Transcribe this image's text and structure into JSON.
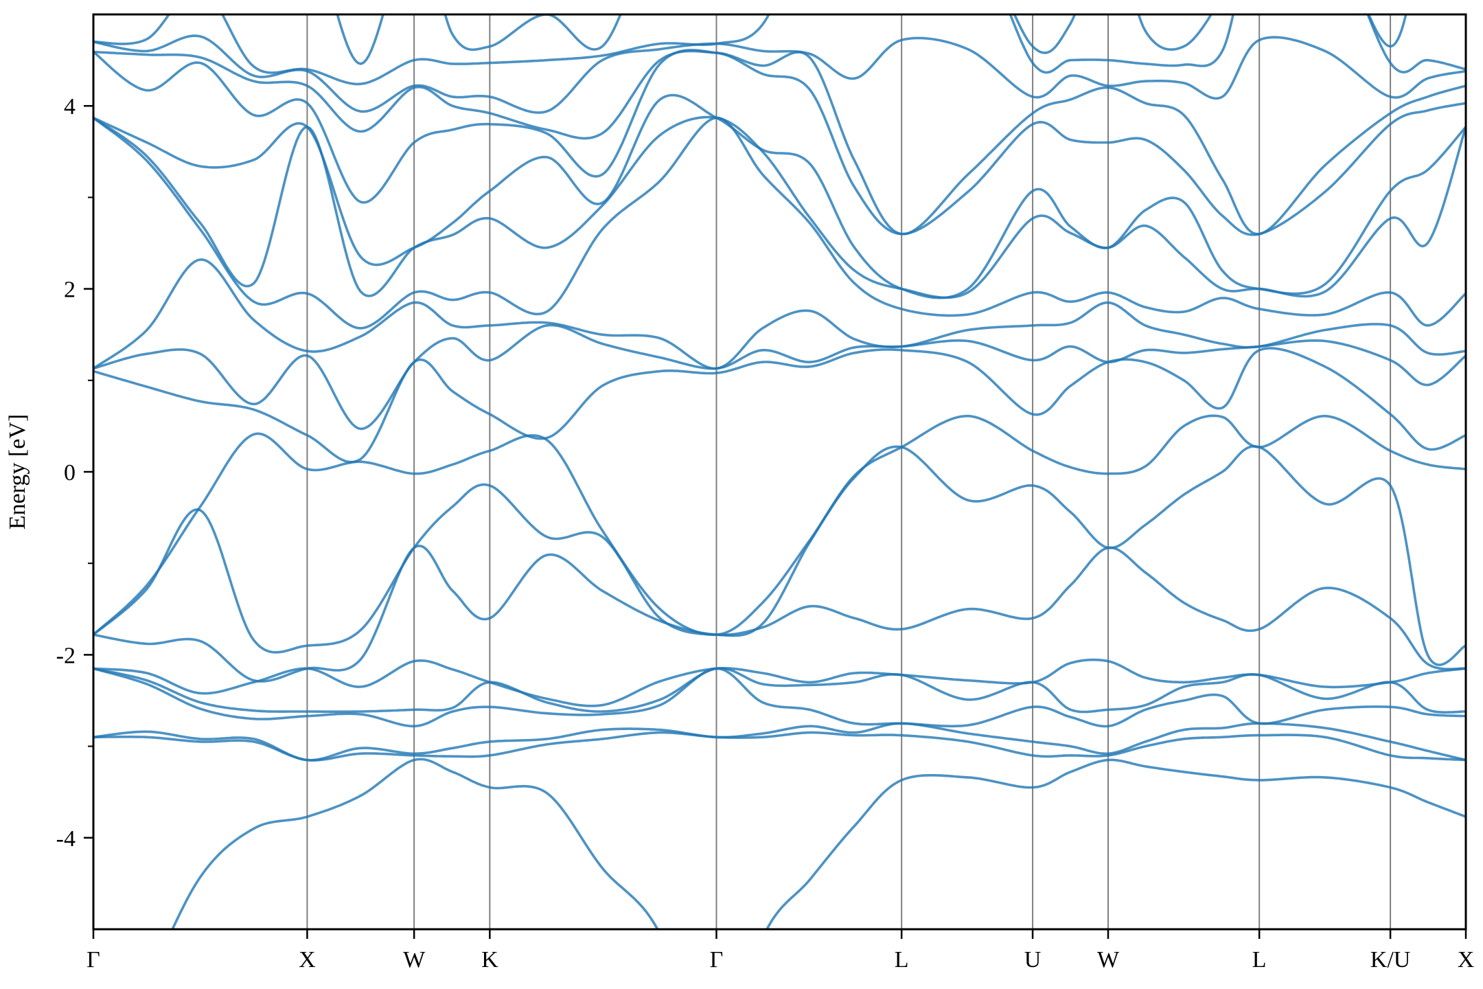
{
  "chart_data": {
    "type": "line",
    "title": "",
    "xlabel": "",
    "ylabel": "Energy [eV]",
    "ylim": [
      -5,
      5
    ],
    "yticks": [
      -4,
      -2,
      0,
      2,
      4
    ],
    "yticks_minor": [
      -3,
      -1,
      1,
      3
    ],
    "ytick_labels": [
      "-4",
      "-2",
      "0",
      "2",
      "4"
    ],
    "grid": false,
    "legend": "none",
    "line_color": "#1f77b4",
    "vline_color": "#808080",
    "kpath": {
      "positions": [
        0,
        1.0,
        1.5,
        1.854,
        2.914,
        3.78,
        4.393,
        4.746,
        5.453,
        6.066,
        6.419
      ],
      "labels": [
        "Γ",
        "X",
        "W",
        "K",
        "Γ",
        "L",
        "U",
        "W",
        "L",
        "K/U",
        "X"
      ]
    },
    "x": [
      0,
      0.25,
      0.5,
      0.75,
      1.0,
      1.25,
      1.5,
      1.68,
      1.854,
      2.12,
      2.38,
      2.65,
      2.914,
      3.13,
      3.35,
      3.56,
      3.78,
      4.09,
      4.393,
      4.57,
      4.746,
      4.92,
      5.1,
      5.28,
      5.453,
      5.76,
      6.066,
      6.24,
      6.419
    ],
    "energies": [
      [
        -6.8,
        -2.9,
        -2.9,
        -2.15,
        -2.15,
        -2.15,
        -1.78,
        -1.78,
        -1.78,
        1.1,
        1.13,
        1.13,
        3.87,
        3.87,
        3.87,
        4.59,
        4.59,
        4.7,
        4.7,
        6
      ],
      [
        -5.6,
        -2.9,
        -2.84,
        -2.32,
        -2.28,
        -2.2,
        -1.88,
        -1.28,
        -1.24,
        0.93,
        1.29,
        1.55,
        3.4,
        3.45,
        3.6,
        4.17,
        4.56,
        4.6,
        4.73,
        6
      ],
      [
        -4.43,
        -2.95,
        -2.92,
        -2.59,
        -2.52,
        -2.42,
        -1.85,
        -0.42,
        -0.38,
        0.77,
        1.29,
        2.32,
        2.65,
        2.72,
        3.34,
        4.47,
        4.53,
        4.76,
        5.3,
        6
      ],
      [
        -3.9,
        -2.95,
        -2.92,
        -2.7,
        -2.61,
        -2.3,
        -2.28,
        -1.84,
        0.41,
        0.68,
        0.74,
        1.66,
        1.86,
        2.06,
        3.41,
        3.9,
        4.27,
        4.33,
        4.43,
        6
      ],
      [
        -3.77,
        -3.15,
        -3.15,
        -2.67,
        -2.62,
        -2.15,
        -2.15,
        -1.9,
        0.03,
        0.4,
        1.27,
        1.32,
        1.95,
        3.77,
        3.77,
        4.03,
        4.22,
        4.38,
        4.4,
        6
      ],
      [
        -3.54,
        -3.08,
        -3.02,
        -2.65,
        -2.62,
        -2.35,
        -2.05,
        -1.73,
        0.11,
        0.14,
        0.47,
        1.48,
        1.57,
        1.97,
        2.35,
        2.95,
        3.72,
        3.94,
        4.24,
        4.46
      ],
      [
        -3.15,
        -3.1,
        -3.08,
        -2.78,
        -2.6,
        -2.07,
        -0.83,
        -0.83,
        -0.02,
        1.2,
        1.2,
        1.85,
        1.96,
        2.45,
        2.45,
        3.6,
        4.2,
        4.22,
        4.5,
        6
      ],
      [
        -3.28,
        -3.11,
        -3.02,
        -2.62,
        -2.58,
        -2.16,
        -1.3,
        -0.38,
        0.08,
        0.88,
        1.46,
        1.6,
        1.88,
        2.59,
        2.72,
        3.74,
        4.0,
        4.1,
        4.46,
        4.78
      ],
      [
        -3.45,
        -3.1,
        -2.95,
        -2.57,
        -2.3,
        -2.3,
        -1.6,
        -0.15,
        0.23,
        0.63,
        1.22,
        1.6,
        1.96,
        2.77,
        3.07,
        3.8,
        3.92,
        4.1,
        4.47,
        4.65
      ],
      [
        -3.51,
        -2.98,
        -2.92,
        -2.64,
        -2.52,
        -2.48,
        -0.91,
        -0.71,
        0.35,
        0.37,
        1.6,
        1.63,
        1.75,
        2.45,
        3.44,
        3.7,
        3.74,
        3.94,
        4.5,
        5.0
      ],
      [
        -4.33,
        -2.92,
        -2.82,
        -2.65,
        -2.62,
        -2.55,
        -1.3,
        -0.71,
        -0.64,
        0.94,
        1.4,
        1.5,
        2.65,
        2.91,
        2.94,
        3.25,
        3.7,
        4.5,
        4.55,
        4.65
      ],
      [
        -5.05,
        -2.85,
        -2.82,
        -2.55,
        -2.49,
        -2.29,
        -1.63,
        -1.6,
        -1.5,
        1.1,
        1.25,
        1.46,
        3.18,
        3.68,
        4.07,
        4.46,
        4.5,
        4.62,
        4.68,
        6
      ],
      [
        -6.8,
        -2.9,
        -2.9,
        -2.15,
        -2.15,
        -2.15,
        -1.78,
        -1.78,
        -1.78,
        1.08,
        1.13,
        1.13,
        3.87,
        3.87,
        3.87,
        4.58,
        4.58,
        4.68,
        4.68,
        6
      ],
      [
        -5.1,
        -2.9,
        -2.86,
        -2.52,
        -2.32,
        -2.2,
        -1.7,
        -1.66,
        -1.43,
        1.2,
        1.33,
        1.57,
        3.25,
        3.5,
        3.52,
        4.35,
        4.44,
        4.6,
        4.89,
        6
      ],
      [
        -4.46,
        -2.85,
        -2.78,
        -2.6,
        -2.33,
        -2.3,
        -1.47,
        -0.77,
        -0.75,
        1.15,
        1.2,
        1.76,
        2.72,
        2.78,
        3.37,
        4.18,
        4.53,
        4.57,
        6,
        6
      ],
      [
        -3.87,
        -2.88,
        -2.85,
        -2.75,
        -2.3,
        -2.2,
        -1.6,
        -0.06,
        -0.04,
        1.3,
        1.36,
        1.45,
        2.06,
        2.2,
        2.45,
        3.11,
        3.4,
        4.3,
        6,
        6
      ],
      [
        -3.37,
        -2.88,
        -2.75,
        -2.75,
        -2.22,
        -2.22,
        -1.72,
        0.27,
        0.27,
        1.33,
        1.37,
        1.37,
        1.78,
        2.0,
        2.0,
        2.6,
        2.6,
        4.72,
        6,
        6
      ],
      [
        -3.34,
        -2.95,
        -2.86,
        -2.77,
        -2.49,
        -2.28,
        -1.5,
        -0.31,
        0.61,
        1.2,
        1.43,
        1.55,
        1.72,
        1.96,
        2.0,
        3.06,
        3.25,
        4.62,
        6,
        6
      ],
      [
        -3.45,
        -3.1,
        -2.95,
        -2.57,
        -2.3,
        -2.3,
        -1.6,
        -0.15,
        0.23,
        0.63,
        1.22,
        1.6,
        1.96,
        2.77,
        3.07,
        3.8,
        3.92,
        4.1,
        4.47,
        4.65
      ],
      [
        -3.28,
        -3.1,
        -3.0,
        -2.68,
        -2.6,
        -2.09,
        -1.24,
        -0.44,
        0.05,
        0.94,
        1.37,
        1.63,
        1.86,
        2.61,
        2.68,
        3.63,
        4.07,
        4.33,
        4.5,
        4.9
      ],
      [
        -3.15,
        -3.1,
        -3.08,
        -2.78,
        -2.6,
        -2.07,
        -0.83,
        -0.83,
        -0.02,
        1.2,
        1.2,
        1.85,
        1.96,
        2.45,
        2.45,
        3.6,
        4.2,
        4.22,
        4.5,
        6
      ],
      [
        -3.22,
        -3.0,
        -2.95,
        -2.6,
        -2.55,
        -2.25,
        -1.1,
        -0.58,
        0.06,
        1.2,
        1.33,
        1.6,
        1.8,
        2.69,
        2.86,
        3.63,
        4.03,
        4.27,
        4.46,
        4.82
      ],
      [
        -3.28,
        -2.92,
        -2.82,
        -2.5,
        -2.35,
        -2.3,
        -1.43,
        -0.25,
        0.5,
        1.0,
        1.3,
        1.5,
        1.75,
        2.35,
        2.95,
        3.3,
        3.9,
        4.25,
        4.45,
        4.65
      ],
      [
        -3.33,
        -2.9,
        -2.8,
        -2.45,
        -2.3,
        -2.25,
        -1.62,
        0.0,
        0.6,
        0.7,
        1.34,
        1.4,
        1.9,
        2.0,
        2.2,
        2.8,
        3.2,
        4.1,
        4.6,
        5.2
      ],
      [
        -3.37,
        -2.88,
        -2.75,
        -2.75,
        -2.22,
        -2.22,
        -1.72,
        0.27,
        0.27,
        1.33,
        1.37,
        1.37,
        1.78,
        2.0,
        2.0,
        2.6,
        2.6,
        4.72,
        6,
        6
      ],
      [
        -3.34,
        -2.9,
        -2.8,
        -2.6,
        -2.48,
        -2.35,
        -1.27,
        -0.35,
        0.61,
        1.15,
        1.43,
        1.55,
        1.72,
        1.97,
        2.05,
        3.06,
        3.35,
        4.6,
        6,
        6
      ],
      [
        -3.45,
        -3.1,
        -2.95,
        -2.57,
        -2.3,
        -2.3,
        -1.6,
        -0.15,
        0.23,
        0.63,
        1.22,
        1.6,
        1.96,
        2.77,
        3.07,
        3.8,
        3.92,
        4.1,
        4.47,
        4.65
      ],
      [
        -3.61,
        -3.13,
        -3.05,
        -2.65,
        -2.6,
        -2.2,
        -2.1,
        -2.0,
        0.08,
        0.25,
        0.95,
        1.3,
        1.6,
        2.5,
        3.3,
        3.95,
        4.1,
        4.3,
        4.5,
        6
      ],
      [
        -3.77,
        -3.15,
        -3.15,
        -2.67,
        -2.62,
        -2.15,
        -2.15,
        -1.9,
        0.03,
        0.4,
        1.27,
        1.32,
        1.95,
        3.77,
        3.77,
        4.03,
        4.22,
        4.38,
        4.4,
        6
      ]
    ]
  }
}
